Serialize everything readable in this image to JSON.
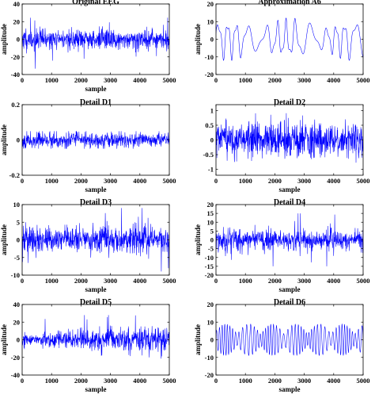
{
  "chart_data": [
    {
      "type": "line",
      "title": "Original EEG",
      "xlabel": "sample",
      "ylabel": "amplitude",
      "xlim": [
        0,
        5000
      ],
      "ylim": [
        -40,
        40
      ],
      "xticks": [
        0,
        1000,
        2000,
        3000,
        4000,
        5000
      ],
      "yticks": [
        -40,
        -20,
        0,
        20,
        40
      ],
      "ytick_labels": [
        "-40",
        "-20",
        "0",
        "20",
        "40"
      ],
      "series_color": "#0000ff",
      "signal": {
        "kind": "broadband",
        "amp": 7,
        "peak": 34,
        "seed": 11
      }
    },
    {
      "type": "line",
      "title": "Approximation A6",
      "xlabel": "",
      "ylabel": "amplitude",
      "xlim": [
        0,
        5000
      ],
      "ylim": [
        -20,
        20
      ],
      "xticks": [
        0,
        1000,
        2000,
        3000,
        4000,
        5000
      ],
      "yticks": [
        -20,
        -10,
        0,
        10,
        20
      ],
      "ytick_labels": [
        "-20",
        "-10",
        "0",
        "10",
        "20"
      ],
      "series_color": "#0000ff",
      "signal": {
        "kind": "smooth",
        "amp": 9,
        "peak": 17,
        "seed": 5
      }
    },
    {
      "type": "line",
      "title": "Detail D1",
      "xlabel": "sample",
      "ylabel": "amplitude",
      "xlim": [
        0,
        5000
      ],
      "ylim": [
        -0.2,
        0.2
      ],
      "xticks": [
        0,
        1000,
        2000,
        3000,
        4000,
        5000
      ],
      "yticks": [
        -0.2,
        0,
        0.2
      ],
      "ytick_labels": [
        "-0.2",
        "0",
        "0.2"
      ],
      "series_color": "#0000ff",
      "signal": {
        "kind": "noise",
        "amp": 0.022,
        "peak": 0.05,
        "seed": 23
      }
    },
    {
      "type": "line",
      "title": "Detail D2",
      "xlabel": "sample",
      "ylabel": "",
      "xlim": [
        0,
        5000
      ],
      "ylim": [
        -1.2,
        1.2
      ],
      "xticks": [
        0,
        1000,
        2000,
        3000,
        4000,
        5000
      ],
      "yticks": [
        -1,
        -0.5,
        0,
        0.5,
        1
      ],
      "ytick_labels": [
        "-1",
        "-0.5",
        "0",
        "0.5",
        "1"
      ],
      "series_color": "#0000ff",
      "signal": {
        "kind": "noise",
        "amp": 0.3,
        "peak": 1.1,
        "seed": 37
      }
    },
    {
      "type": "line",
      "title": "Detail D3",
      "xlabel": "sample",
      "ylabel": "amplitude",
      "xlim": [
        0,
        5000
      ],
      "ylim": [
        -10,
        10
      ],
      "xticks": [
        0,
        1000,
        2000,
        3000,
        4000,
        5000
      ],
      "yticks": [
        -10,
        -5,
        0,
        5,
        10
      ],
      "ytick_labels": [
        "-10",
        "-5",
        "0",
        "5",
        "10"
      ],
      "series_color": "#0000ff",
      "signal": {
        "kind": "broadband",
        "amp": 2.2,
        "peak": 9,
        "seed": 41
      }
    },
    {
      "type": "line",
      "title": "Detail D4",
      "xlabel": "sample",
      "ylabel": "amplitude",
      "xlim": [
        0,
        5000
      ],
      "ylim": [
        -20,
        20
      ],
      "xticks": [
        0,
        1000,
        2000,
        3000,
        4000,
        5000
      ],
      "yticks": [
        -20,
        -15,
        -10,
        -5,
        0,
        5,
        10,
        15,
        20
      ],
      "ytick_labels": [
        "-20",
        "-15",
        "-10",
        "-5",
        "0",
        "5",
        "10",
        "15",
        "20"
      ],
      "series_color": "#0000ff",
      "signal": {
        "kind": "broadband",
        "amp": 3.5,
        "peak": 15,
        "seed": 53
      }
    },
    {
      "type": "line",
      "title": "Detail D5",
      "xlabel": "sample",
      "ylabel": "amplitude",
      "xlim": [
        0,
        5000
      ],
      "ylim": [
        -40,
        40
      ],
      "xticks": [
        0,
        1000,
        2000,
        3000,
        4000,
        5000
      ],
      "yticks": [
        -40,
        -20,
        0,
        20,
        40
      ],
      "ytick_labels": [
        "-40",
        "-20",
        "0",
        "20",
        "40"
      ],
      "series_color": "#0000ff",
      "signal": {
        "kind": "growing",
        "amp": 6,
        "peak": 28,
        "seed": 67
      }
    },
    {
      "type": "line",
      "title": "Detail D6",
      "xlabel": "sample",
      "ylabel": "amplitude",
      "xlim": [
        0,
        5000
      ],
      "ylim": [
        -20,
        20
      ],
      "xticks": [
        0,
        1000,
        2000,
        3000,
        4000,
        5000
      ],
      "yticks": [
        -20,
        -10,
        0,
        10,
        20
      ],
      "ytick_labels": [
        "-20",
        "-10",
        "0",
        "10",
        "20"
      ],
      "series_color": "#0000ff",
      "signal": {
        "kind": "oscillation",
        "amp": 9,
        "peak": 18,
        "seed": 79
      }
    }
  ]
}
